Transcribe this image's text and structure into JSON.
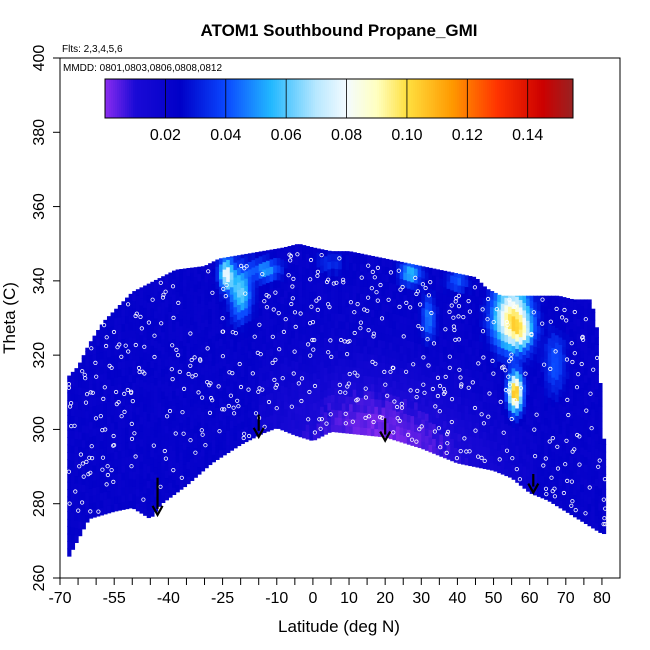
{
  "chart_data": {
    "type": "heatmap",
    "title": "ATOM1 Southbound Propane_GMI",
    "flights_label": "Flts: 2,3,4,5,6",
    "dates_label": "MMDD: 0801,0803,0806,0808,0812",
    "xlabel": "Latitude (deg N)",
    "ylabel": "Theta (C)",
    "xlim": [
      -70,
      85
    ],
    "ylim": [
      260,
      400
    ],
    "x_ticks": [
      -70,
      -55,
      -40,
      -25,
      -10,
      0,
      10,
      20,
      30,
      40,
      50,
      60,
      70,
      80
    ],
    "x_minor_ticks": [
      -65,
      -60,
      -50,
      -45,
      -35,
      -30,
      -20,
      -15,
      -5,
      5,
      15,
      25,
      35,
      45,
      55,
      65,
      75
    ],
    "y_ticks": [
      260,
      280,
      300,
      320,
      340,
      360,
      380,
      400
    ],
    "colorbar": {
      "range": [
        0.0,
        0.155
      ],
      "ticks": [
        0.02,
        0.04,
        0.06,
        0.08,
        0.1,
        0.12,
        0.14
      ],
      "tick_labels": [
        "0.02",
        "0.04",
        "0.06",
        "0.08",
        "0.10",
        "0.12",
        "0.14"
      ],
      "stops": [
        {
          "v": 0.0,
          "c": "#8b2cf0"
        },
        {
          "v": 0.01,
          "c": "#1a0ad6"
        },
        {
          "v": 0.025,
          "c": "#0000c8"
        },
        {
          "v": 0.04,
          "c": "#0a48ff"
        },
        {
          "v": 0.055,
          "c": "#22b8ff"
        },
        {
          "v": 0.07,
          "c": "#b8e8ff"
        },
        {
          "v": 0.08,
          "c": "#f4fbff"
        },
        {
          "v": 0.09,
          "c": "#ffffc0"
        },
        {
          "v": 0.1,
          "c": "#ffe040"
        },
        {
          "v": 0.115,
          "c": "#ff9900"
        },
        {
          "v": 0.13,
          "c": "#ff3300"
        },
        {
          "v": 0.145,
          "c": "#cc0000"
        },
        {
          "v": 0.155,
          "c": "#992222"
        }
      ]
    },
    "lower_boundary": [
      [
        -68,
        265
      ],
      [
        -62,
        276
      ],
      [
        -55,
        278
      ],
      [
        -50,
        279
      ],
      [
        -45,
        276
      ],
      [
        -42,
        280
      ],
      [
        -35,
        285
      ],
      [
        -28,
        291
      ],
      [
        -20,
        296
      ],
      [
        -14,
        299
      ],
      [
        -10,
        300.5
      ],
      [
        -5,
        298.5
      ],
      [
        0,
        297
      ],
      [
        5,
        299.5
      ],
      [
        10,
        299
      ],
      [
        15,
        298.5
      ],
      [
        20,
        298
      ],
      [
        25,
        296.5
      ],
      [
        30,
        295
      ],
      [
        35,
        293
      ],
      [
        40,
        291
      ],
      [
        45,
        290
      ],
      [
        50,
        289
      ],
      [
        55,
        287
      ],
      [
        60,
        283
      ],
      [
        65,
        281
      ],
      [
        70,
        278
      ],
      [
        75,
        275
      ],
      [
        80,
        272
      ]
    ],
    "upper_boundary": [
      [
        -68,
        314
      ],
      [
        -65,
        317
      ],
      [
        -62,
        323
      ],
      [
        -58,
        329
      ],
      [
        -55,
        332
      ],
      [
        -50,
        337
      ],
      [
        -44,
        340
      ],
      [
        -38,
        343
      ],
      [
        -30,
        344
      ],
      [
        -26,
        346
      ],
      [
        -20,
        347
      ],
      [
        -14,
        348
      ],
      [
        -8,
        349
      ],
      [
        -4,
        350
      ],
      [
        0,
        349
      ],
      [
        5,
        348
      ],
      [
        10,
        348
      ],
      [
        15,
        347
      ],
      [
        20,
        346
      ],
      [
        25,
        345
      ],
      [
        30,
        344
      ],
      [
        35,
        343
      ],
      [
        40,
        342
      ],
      [
        45,
        341
      ],
      [
        48,
        338
      ],
      [
        52,
        336
      ],
      [
        56,
        336
      ],
      [
        62,
        336
      ],
      [
        68,
        336
      ],
      [
        72,
        335
      ],
      [
        77,
        335
      ],
      [
        79,
        325
      ],
      [
        80,
        300
      ],
      [
        81,
        295
      ]
    ],
    "blobs": [
      {
        "lat": 55,
        "theta": 330,
        "slat": 5,
        "sth": 8,
        "amp": 0.075
      },
      {
        "lat": 56,
        "theta": 310,
        "slat": 2,
        "sth": 5,
        "amp": 0.09
      },
      {
        "lat": 58,
        "theta": 326,
        "slat": 3,
        "sth": 4,
        "amp": 0.03
      },
      {
        "lat": -24,
        "theta": 342,
        "slat": 2,
        "sth": 4,
        "amp": 0.055
      },
      {
        "lat": -20,
        "theta": 337,
        "slat": 3,
        "sth": 7,
        "amp": 0.04
      },
      {
        "lat": -13,
        "theta": 343,
        "slat": 4,
        "sth": 3,
        "amp": 0.03
      },
      {
        "lat": 27,
        "theta": 342,
        "slat": 3,
        "sth": 3,
        "amp": 0.035
      },
      {
        "lat": 32,
        "theta": 330,
        "slat": 2,
        "sth": 6,
        "amp": 0.025
      },
      {
        "lat": 40,
        "theta": 340,
        "slat": 3,
        "sth": 3,
        "amp": 0.02
      },
      {
        "lat": 67,
        "theta": 318,
        "slat": 3,
        "sth": 8,
        "amp": 0.02
      },
      {
        "lat": 5,
        "theta": 345,
        "slat": 4,
        "sth": 3,
        "amp": 0.012
      }
    ],
    "arrows": [
      {
        "lat": -43,
        "theta_top": 287,
        "theta_tip": 277
      },
      {
        "lat": -15,
        "theta_top": 304,
        "theta_tip": 298
      },
      {
        "lat": 20,
        "theta_top": 303,
        "theta_tip": 297
      },
      {
        "lat": 61,
        "theta_top": 288,
        "theta_tip": 283
      }
    ],
    "colors": {
      "background": "#ffffff",
      "axis": "#000000",
      "arrow": "#000000",
      "sample_marker": "#ffffff"
    }
  }
}
